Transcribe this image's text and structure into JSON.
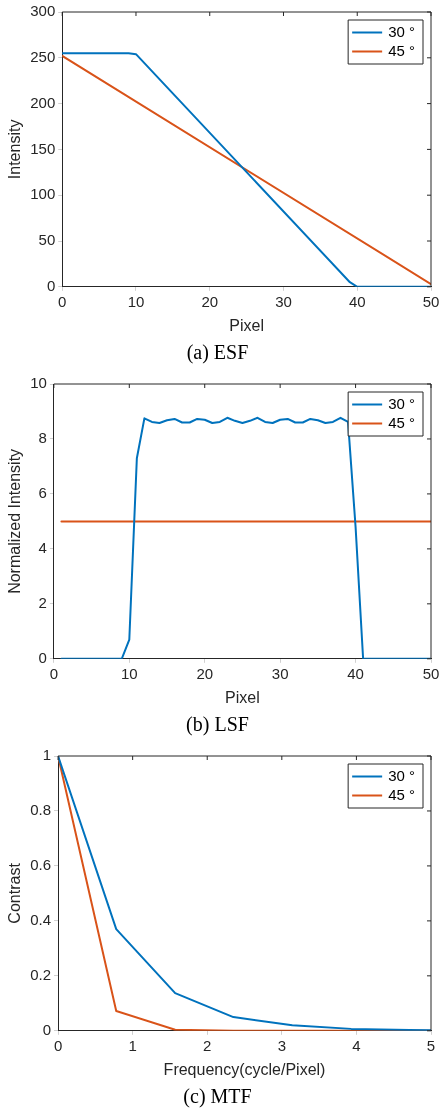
{
  "chart_data": [
    {
      "type": "line",
      "title": "(a) ESF",
      "xlabel": "Pixel",
      "ylabel": "Intensity",
      "xlim": [
        0,
        50
      ],
      "xticks": [
        0,
        10,
        20,
        30,
        40,
        50
      ],
      "ylim": [
        0,
        300
      ],
      "yticks": [
        0,
        50,
        100,
        150,
        200,
        250,
        300
      ],
      "legend": "top right",
      "marker": "none",
      "line_style": "solid",
      "series": [
        {
          "name": "30 °",
          "color": "#0072bd",
          "x": [
            0,
            9,
            10,
            39,
            40,
            50
          ],
          "values": [
            255,
            255,
            254,
            5,
            0,
            0
          ]
        },
        {
          "name": "45 °",
          "color": "#d95319",
          "x": [
            0,
            50
          ],
          "values": [
            252,
            3
          ]
        }
      ]
    },
    {
      "type": "line",
      "title": "(b) LSF",
      "xlabel": "Pixel",
      "ylabel": "Normalized Intensity",
      "xlim": [
        0,
        50
      ],
      "xticks": [
        0,
        10,
        20,
        30,
        40,
        50
      ],
      "ylim": [
        0,
        10
      ],
      "yticks": [
        0,
        2,
        4,
        6,
        8,
        10
      ],
      "legend": "top right",
      "marker": "none",
      "line_style": "solid",
      "series": [
        {
          "name": "30 °",
          "color": "#0072bd",
          "x": [
            1,
            2,
            3,
            4,
            5,
            6,
            7,
            8,
            9,
            10,
            11,
            12,
            13,
            14,
            15,
            16,
            17,
            18,
            19,
            20,
            21,
            22,
            23,
            24,
            25,
            26,
            27,
            28,
            29,
            30,
            31,
            32,
            33,
            34,
            35,
            36,
            37,
            38,
            39,
            40,
            41,
            42,
            43,
            44,
            45,
            46,
            47,
            48,
            49,
            50
          ],
          "values": [
            0,
            0,
            0,
            0,
            0,
            0,
            0,
            0,
            0,
            0.7,
            7.3,
            8.75,
            8.62,
            8.58,
            8.68,
            8.73,
            8.6,
            8.6,
            8.73,
            8.7,
            8.58,
            8.62,
            8.77,
            8.66,
            8.58,
            8.66,
            8.77,
            8.62,
            8.58,
            8.7,
            8.73,
            8.6,
            8.6,
            8.73,
            8.68,
            8.58,
            8.62,
            8.77,
            8.62,
            4.8,
            0,
            0,
            0,
            0,
            0,
            0,
            0,
            0,
            0,
            0
          ]
        },
        {
          "name": "45 °",
          "color": "#d95319",
          "x": [
            1,
            50
          ],
          "values": [
            5,
            5
          ]
        }
      ]
    },
    {
      "type": "line",
      "title": "(c) MTF",
      "xlabel": "Frequency(cycle/Pixel)",
      "ylabel": "Contrast",
      "xlim": [
        0,
        5
      ],
      "xticks": [
        0,
        1,
        2,
        3,
        4,
        5
      ],
      "ylim": [
        0,
        1
      ],
      "yticks": [
        0,
        0.2,
        0.4,
        0.6,
        0.8,
        1
      ],
      "legend": "top right",
      "marker": "none",
      "line_style": "solid",
      "series": [
        {
          "name": "30 °",
          "color": "#0072bd",
          "x": [
            0,
            0.78,
            1.57,
            2.35,
            3.14,
            3.93,
            4.71,
            5
          ],
          "values": [
            1,
            0.37,
            0.137,
            0.05,
            0.02,
            0.007,
            0.003,
            0.002
          ]
        },
        {
          "name": "45 °",
          "color": "#d95319",
          "x": [
            0,
            0.78,
            1.57,
            2.35,
            5
          ],
          "values": [
            1,
            0.072,
            0.004,
            0,
            0
          ]
        }
      ]
    }
  ]
}
